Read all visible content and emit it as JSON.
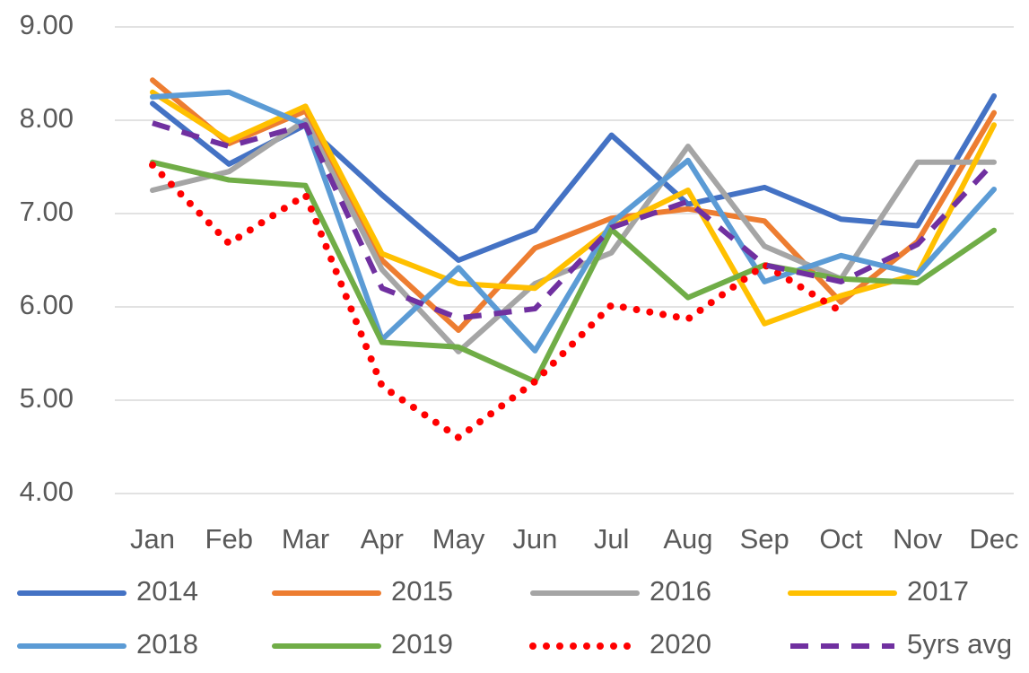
{
  "chart_data": {
    "type": "line",
    "categories": [
      "Jan",
      "Feb",
      "Mar",
      "Apr",
      "May",
      "Jun",
      "Jul",
      "Aug",
      "Sep",
      "Oct",
      "Nov",
      "Dec"
    ],
    "ylim": [
      4,
      9
    ],
    "yticks": [
      {
        "value": 4,
        "label": "4.00"
      },
      {
        "value": 5,
        "label": "5.00"
      },
      {
        "value": 6,
        "label": "6.00"
      },
      {
        "value": 7,
        "label": "7.00"
      },
      {
        "value": 8,
        "label": "8.00"
      },
      {
        "value": 9,
        "label": "9.00"
      }
    ],
    "grid": true,
    "legend": "bottom",
    "series": [
      {
        "name": "2014",
        "color": "#4472c4",
        "style": "solid",
        "values": [
          8.18,
          7.53,
          7.95,
          7.2,
          6.5,
          6.82,
          7.84,
          7.1,
          7.28,
          6.94,
          6.87,
          8.26
        ]
      },
      {
        "name": "2015",
        "color": "#ed7d31",
        "style": "solid",
        "values": [
          8.43,
          7.75,
          8.1,
          6.5,
          5.75,
          6.63,
          6.95,
          7.05,
          6.92,
          6.05,
          6.7,
          8.08
        ]
      },
      {
        "name": "2016",
        "color": "#a5a5a5",
        "style": "solid",
        "values": [
          7.25,
          7.45,
          8.0,
          6.4,
          5.52,
          6.25,
          6.58,
          7.72,
          6.65,
          6.3,
          7.55,
          7.55
        ]
      },
      {
        "name": "2017",
        "color": "#ffc000",
        "style": "solid",
        "values": [
          8.3,
          7.78,
          8.15,
          6.57,
          6.25,
          6.2,
          6.85,
          7.25,
          5.82,
          6.12,
          6.35,
          7.95
        ]
      },
      {
        "name": "2018",
        "color": "#5b9bd5",
        "style": "solid",
        "values": [
          8.25,
          8.3,
          7.95,
          5.65,
          6.42,
          5.53,
          6.9,
          7.57,
          6.27,
          6.55,
          6.35,
          7.26
        ]
      },
      {
        "name": "2019",
        "color": "#70ad47",
        "style": "solid",
        "values": [
          7.55,
          7.36,
          7.3,
          5.62,
          5.57,
          5.2,
          6.83,
          6.1,
          6.45,
          6.3,
          6.26,
          6.82
        ]
      },
      {
        "name": "2020",
        "color": "#ff0000",
        "style": "dotted",
        "values": [
          7.52,
          6.68,
          7.2,
          5.15,
          4.6,
          5.2,
          6.02,
          5.87,
          6.45,
          5.95,
          null,
          null
        ]
      },
      {
        "name": "5yrs avg",
        "color": "#7030a0",
        "style": "dashed",
        "values": [
          7.97,
          7.72,
          7.95,
          6.2,
          5.88,
          5.98,
          6.85,
          7.13,
          6.45,
          6.27,
          6.67,
          7.55
        ]
      }
    ]
  }
}
